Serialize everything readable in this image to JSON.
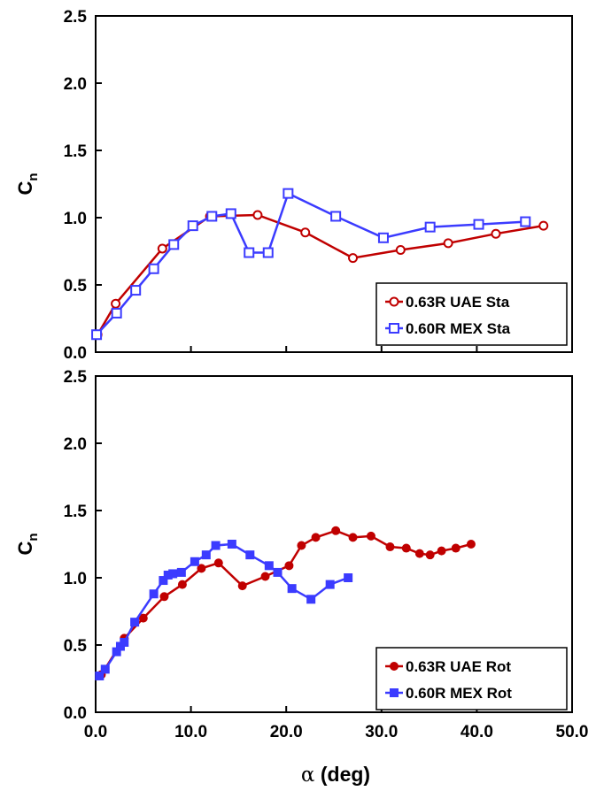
{
  "colors": {
    "red": "#c00000",
    "blue": "#3b3bff",
    "axis": "#000000"
  },
  "xaxis": {
    "ticks": [
      "0.0",
      "10.0",
      "20.0",
      "30.0",
      "40.0",
      "50.0"
    ],
    "label_symbol": "α",
    "label_rest": " (deg)"
  },
  "chart_data": [
    {
      "type": "line",
      "panel": "top",
      "ylabel_main": "C",
      "ylabel_sub": "n",
      "xlim": [
        0,
        50
      ],
      "ylim": [
        0,
        2.5
      ],
      "yticks": [
        "0.0",
        "0.5",
        "1.0",
        "1.5",
        "2.0",
        "2.5"
      ],
      "legend_position": "bottom-right",
      "series": [
        {
          "name": "0.63R UAE Sta",
          "color": "#c00000",
          "marker": "open-circle",
          "x": [
            0.2,
            2.1,
            7.0,
            12.0,
            17.0,
            22.0,
            27.0,
            32.0,
            37.0,
            42.0,
            47.0
          ],
          "y": [
            0.13,
            0.36,
            0.77,
            1.01,
            1.02,
            0.89,
            0.7,
            0.76,
            0.81,
            0.88,
            0.94
          ]
        },
        {
          "name": "0.60R MEX Sta",
          "color": "#3b3bff",
          "marker": "open-square",
          "x": [
            0.1,
            2.2,
            4.2,
            6.1,
            8.2,
            10.2,
            12.2,
            14.2,
            16.1,
            18.1,
            20.2,
            25.2,
            30.2,
            35.1,
            40.2,
            45.1
          ],
          "y": [
            0.13,
            0.29,
            0.46,
            0.62,
            0.8,
            0.94,
            1.01,
            1.03,
            0.74,
            0.74,
            1.18,
            1.01,
            0.85,
            0.93,
            0.95,
            0.97
          ]
        }
      ]
    },
    {
      "type": "line",
      "panel": "bottom",
      "ylabel_main": "C",
      "ylabel_sub": "n",
      "xlim": [
        0,
        50
      ],
      "ylim": [
        0,
        2.5
      ],
      "yticks": [
        "0.0",
        "0.5",
        "1.0",
        "1.5",
        "2.0",
        "2.5"
      ],
      "legend_position": "bottom-right",
      "series": [
        {
          "name": "0.63R UAE Rot",
          "color": "#c00000",
          "marker": "filled-circle",
          "x": [
            0.6,
            3.0,
            5.0,
            7.2,
            9.1,
            11.1,
            12.9,
            15.4,
            17.8,
            20.3,
            21.6,
            23.1,
            25.2,
            27.0,
            28.9,
            30.9,
            32.6,
            34.0,
            35.1,
            36.3,
            37.8,
            39.4
          ],
          "y": [
            0.28,
            0.55,
            0.7,
            0.86,
            0.95,
            1.07,
            1.11,
            0.94,
            1.01,
            1.09,
            1.24,
            1.3,
            1.35,
            1.3,
            1.31,
            1.23,
            1.22,
            1.18,
            1.17,
            1.2,
            1.22,
            1.25
          ]
        },
        {
          "name": "0.60R MEX Rot",
          "color": "#3b3bff",
          "marker": "filled-square",
          "x": [
            0.4,
            1.0,
            2.2,
            2.6,
            3.0,
            4.1,
            6.1,
            7.1,
            7.6,
            8.1,
            9.0,
            10.4,
            11.6,
            12.6,
            14.3,
            16.2,
            18.2,
            19.1,
            20.6,
            22.6,
            24.6,
            26.5
          ],
          "y": [
            0.27,
            0.32,
            0.45,
            0.49,
            0.52,
            0.67,
            0.88,
            0.98,
            1.02,
            1.03,
            1.04,
            1.12,
            1.17,
            1.24,
            1.25,
            1.17,
            1.09,
            1.04,
            0.92,
            0.84,
            0.95,
            1.0
          ]
        }
      ]
    }
  ]
}
